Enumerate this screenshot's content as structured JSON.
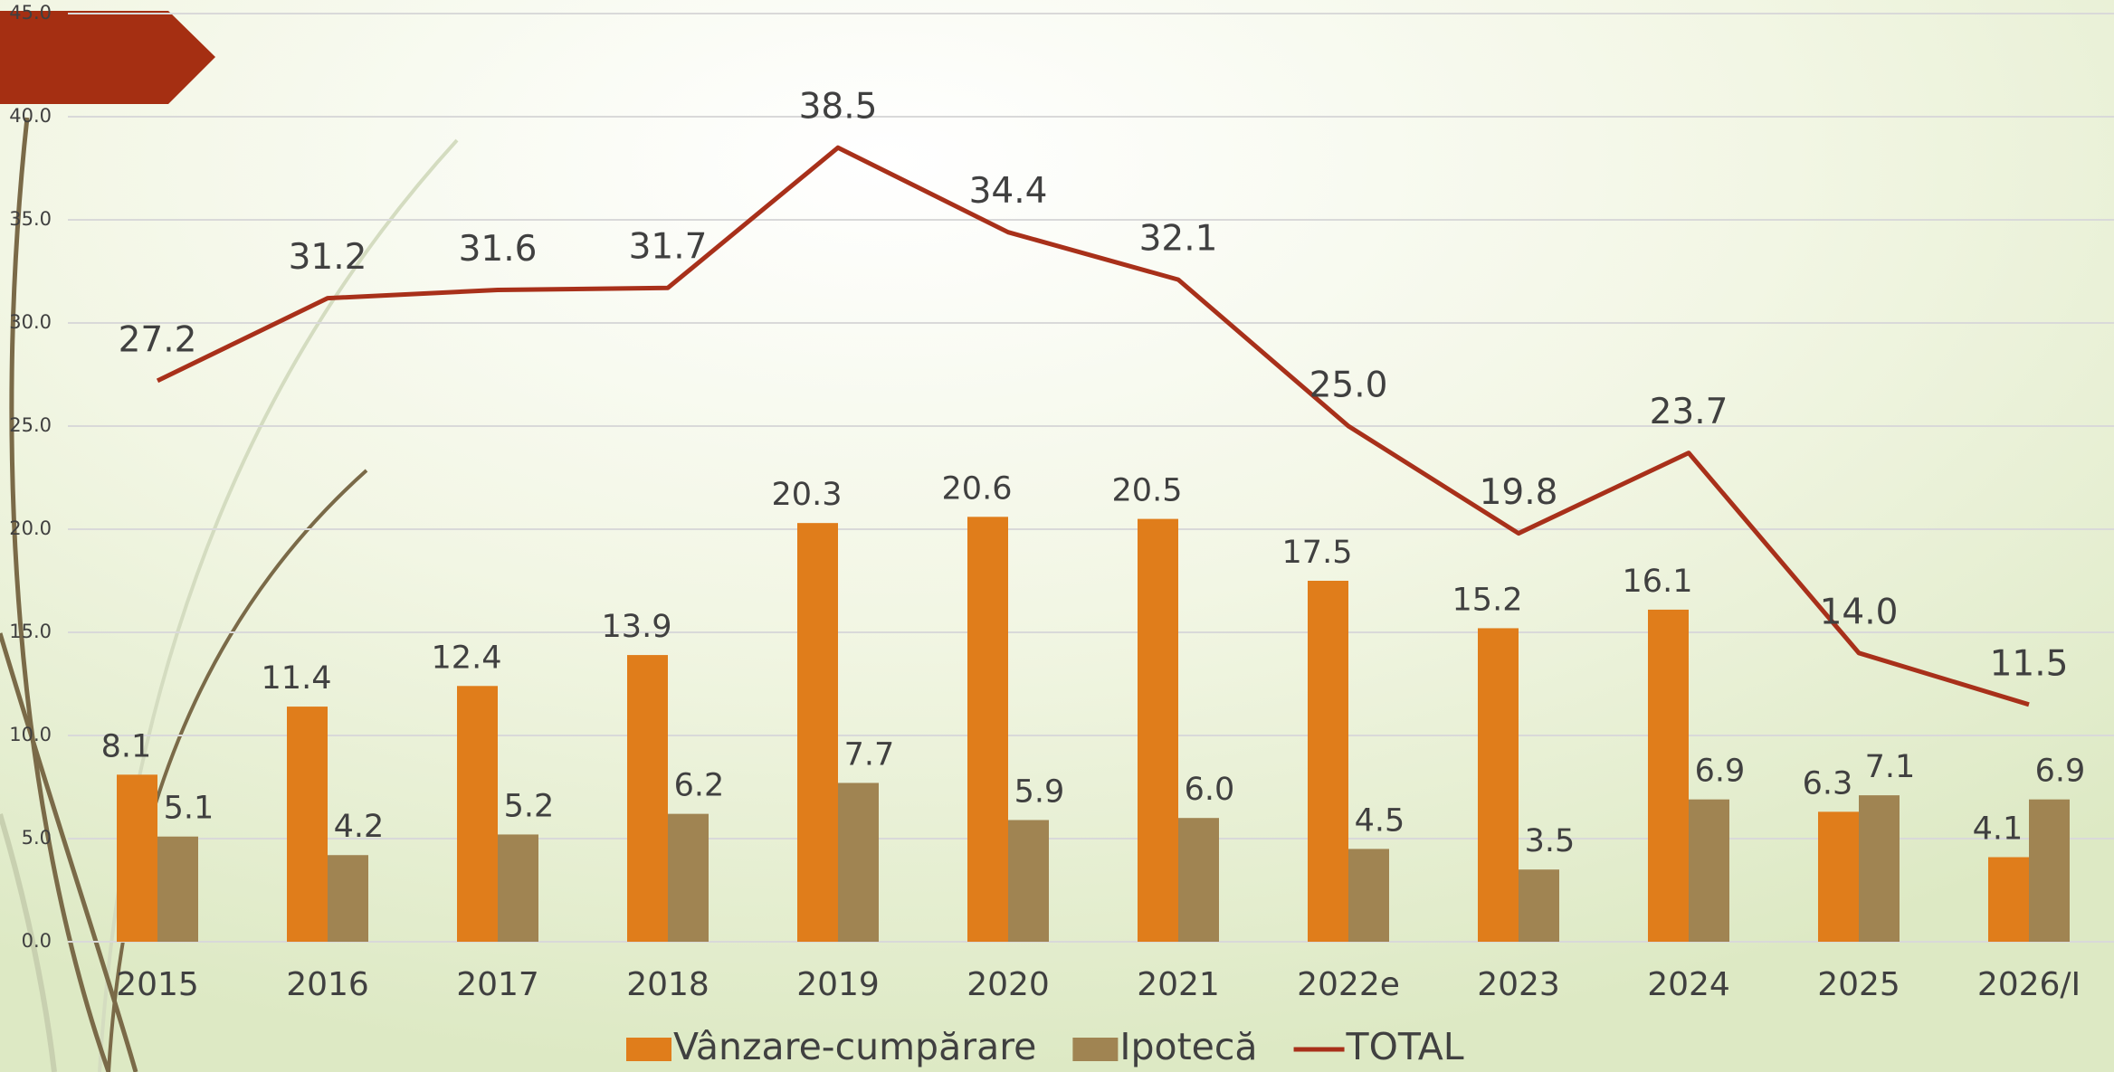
{
  "chart_data": {
    "type": "bar",
    "categories": [
      "2015",
      "2016",
      "2017",
      "2018",
      "2019",
      "2020",
      "2021",
      "2022e",
      "2023",
      "2024",
      "2025",
      "2026/I"
    ],
    "series": [
      {
        "name": "Vânzare-cumpărare",
        "type": "bar",
        "color": "#e07d1b",
        "values": [
          8.1,
          11.4,
          12.4,
          13.9,
          20.3,
          20.6,
          20.5,
          17.5,
          15.2,
          16.1,
          6.3,
          4.1
        ],
        "value_labels": [
          "8.1",
          "11.4",
          "12.4",
          "13.9",
          "20.3",
          "20.6",
          "20.5",
          "17.5",
          "15.2",
          "16.1",
          "6.3",
          "4.1"
        ]
      },
      {
        "name": "Ipotecă",
        "type": "bar",
        "color": "#a08452",
        "values": [
          5.1,
          4.2,
          5.2,
          6.2,
          7.7,
          5.9,
          6.0,
          4.5,
          3.5,
          6.9,
          7.1,
          6.9
        ],
        "value_labels": [
          "5.1",
          "4.2",
          "5.2",
          "6.2",
          "7.7",
          "5.9",
          "6.0",
          "4.5",
          "3.5",
          "6.9",
          "7.1",
          "6.9"
        ]
      },
      {
        "name": "TOTAL",
        "type": "line",
        "color": "#a8301a",
        "values": [
          27.2,
          31.2,
          31.6,
          31.7,
          38.5,
          34.4,
          32.1,
          25.0,
          19.8,
          23.7,
          14.0,
          11.5
        ],
        "value_labels": [
          "27.2",
          "31.2",
          "31.6",
          "31.7",
          "38.5",
          "34.4",
          "32.1",
          "25.0",
          "19.8",
          "23.7",
          "14.0",
          "11.5"
        ]
      }
    ],
    "ylim": [
      0,
      45
    ],
    "yticks": [
      {
        "value": 0,
        "label": "0.0"
      },
      {
        "value": 5,
        "label": "5.0"
      },
      {
        "value": 10,
        "label": "10.0"
      },
      {
        "value": 15,
        "label": "15.0"
      },
      {
        "value": 20,
        "label": "20.0"
      },
      {
        "value": 25,
        "label": "25.0"
      },
      {
        "value": 30,
        "label": "30.0"
      },
      {
        "value": 35,
        "label": "35.0"
      },
      {
        "value": 40,
        "label": "40.0"
      },
      {
        "value": 45,
        "label": "45.0"
      }
    ],
    "grid": true,
    "legend": "bottom"
  }
}
